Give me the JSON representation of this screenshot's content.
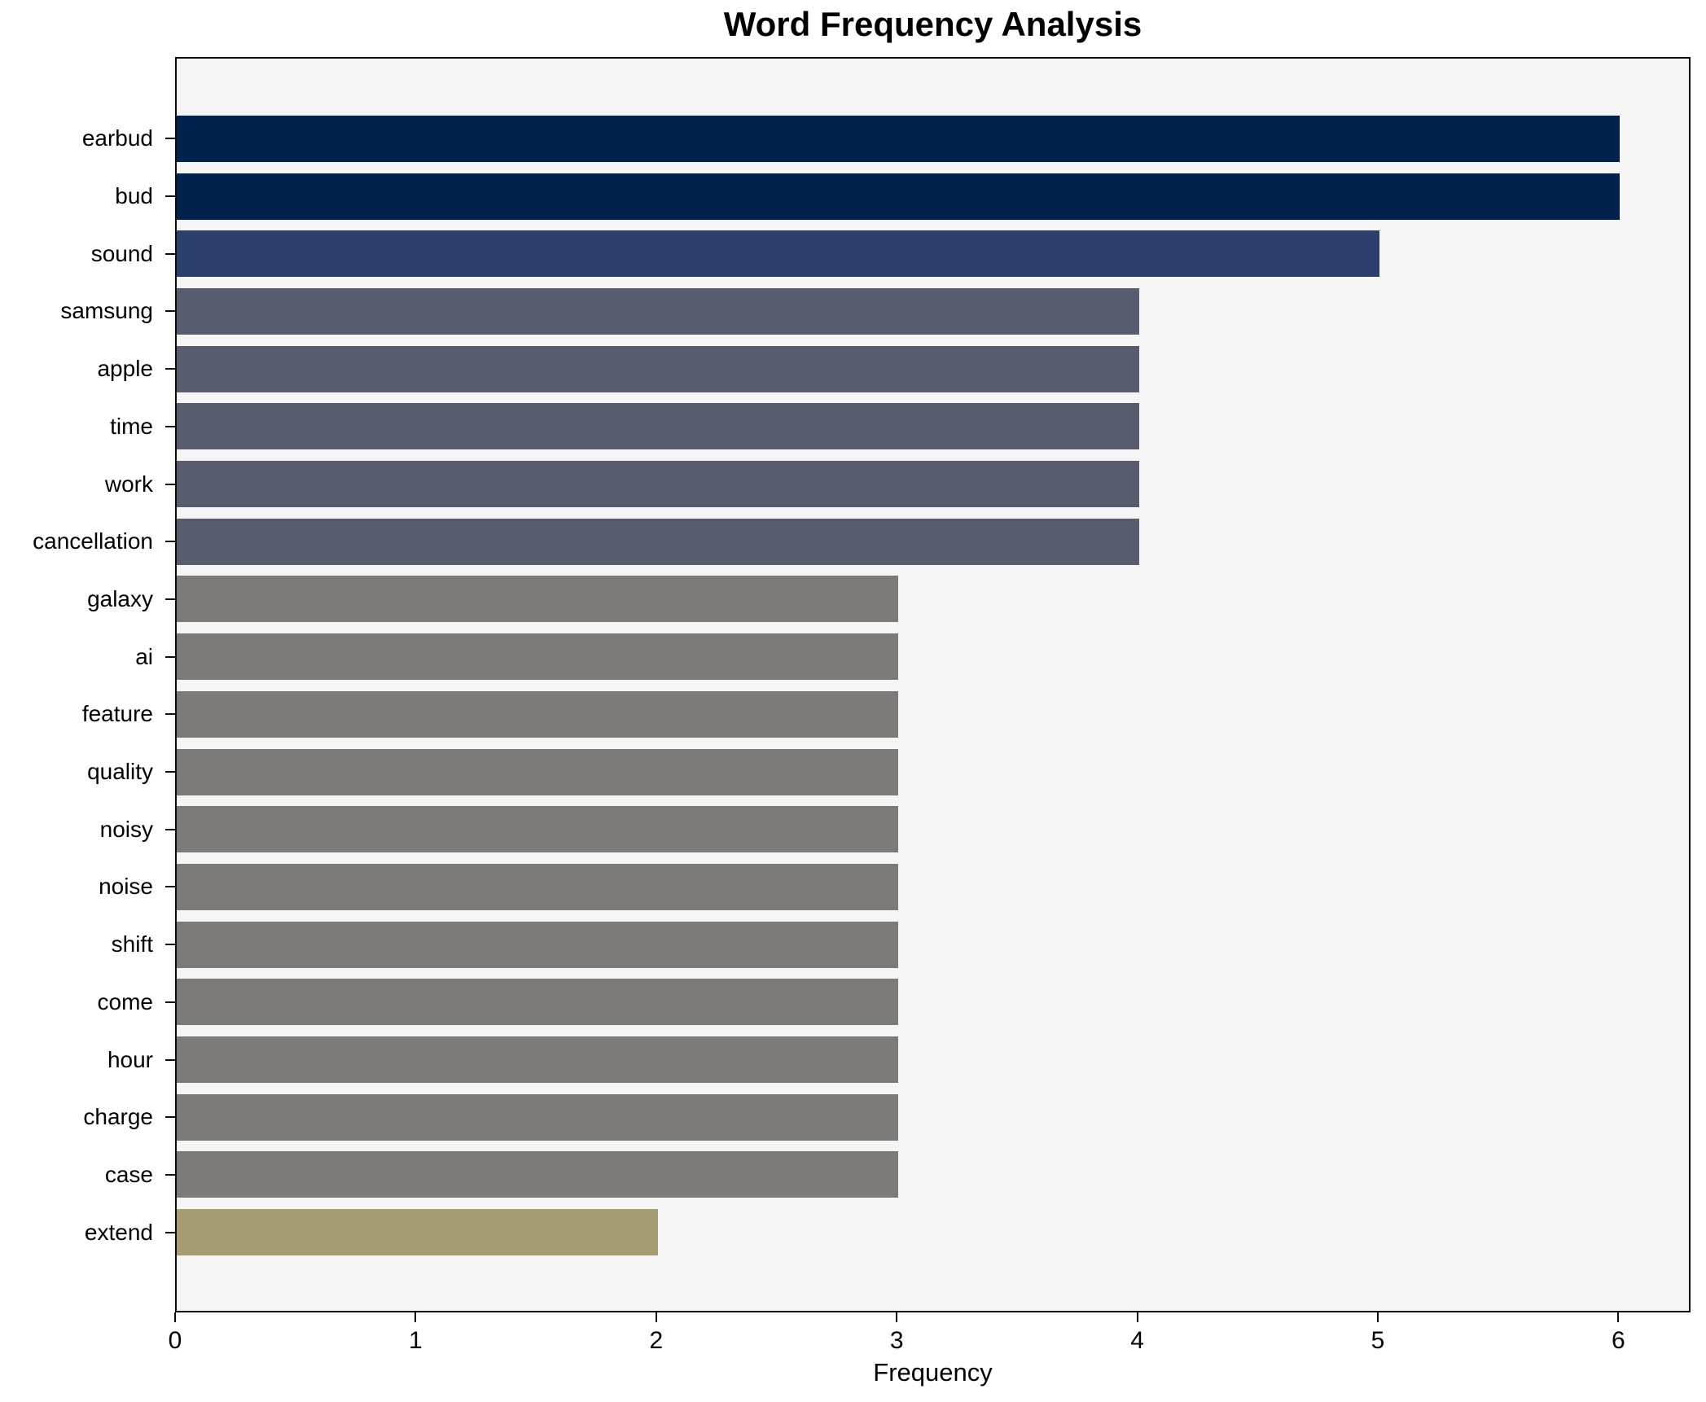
{
  "title": "Word Frequency Analysis",
  "chart_data": {
    "type": "bar",
    "orientation": "horizontal",
    "title": "Word Frequency Analysis",
    "xlabel": "Frequency",
    "ylabel": "",
    "categories": [
      "earbud",
      "bud",
      "sound",
      "samsung",
      "apple",
      "time",
      "work",
      "cancellation",
      "galaxy",
      "ai",
      "feature",
      "quality",
      "noisy",
      "noise",
      "shift",
      "come",
      "hour",
      "charge",
      "case",
      "extend"
    ],
    "values": [
      6,
      6,
      5,
      4,
      4,
      4,
      4,
      4,
      3,
      3,
      3,
      3,
      3,
      3,
      3,
      3,
      3,
      3,
      3,
      2
    ],
    "bar_colors": [
      "#02224e",
      "#02224e",
      "#2c3f6c",
      "#575d6e",
      "#575d6e",
      "#575d6e",
      "#575d6e",
      "#575d6e",
      "#7b7a76",
      "#7b7a76",
      "#7b7a76",
      "#7b7a76",
      "#7b7a76",
      "#7b7a76",
      "#7b7a76",
      "#7b7a76",
      "#7b7a76",
      "#7b7a76",
      "#7b7a76",
      "#a69d73"
    ],
    "xlim": [
      0,
      6.3
    ],
    "xticks": [
      "0",
      "1",
      "2",
      "3",
      "4",
      "5",
      "6"
    ],
    "grid": false,
    "legend": false,
    "colors": {
      "plot_background": "#f5f5f6",
      "figure_background": "#ffffff",
      "spine": "#0c0c0c",
      "text": "#000000"
    }
  }
}
